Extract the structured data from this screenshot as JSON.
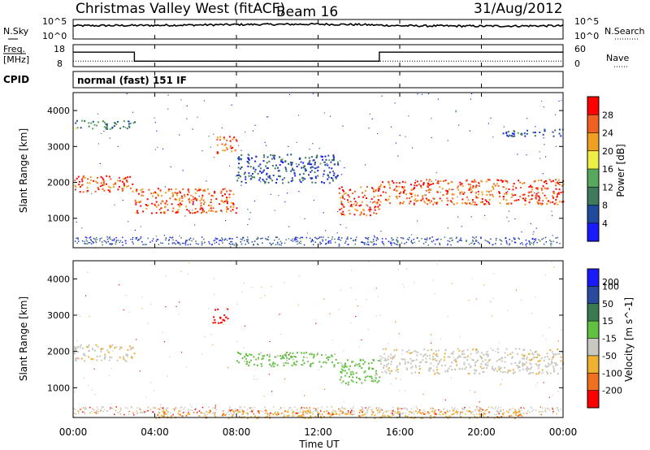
{
  "header": {
    "station": "Christmas Valley West (fitACF)",
    "beam": "Beam 16",
    "date": "31/Aug/2012"
  },
  "noise_panel": {
    "left_label": "N.Sky",
    "right_label": "N.Search",
    "left_ticks": [
      "10^5",
      "10^0"
    ],
    "right_ticks": [
      "10^5",
      "10^0"
    ]
  },
  "freq_panel": {
    "left_label_1": "Freq.",
    "left_label_2": "[MHz]",
    "left_ticks": [
      "18",
      "8"
    ],
    "right_label": "Nave",
    "right_ticks": [
      "60",
      "0"
    ]
  },
  "cpid_panel": {
    "label": "CPID",
    "text": "normal (fast) 151 IF"
  },
  "power_panel": {
    "ylabel": "Slant Range [km]",
    "yticks": [
      "1000",
      "2000",
      "3000",
      "4000"
    ],
    "colorbar_label": "Power [dB]",
    "colorbar_ticks": [
      "4",
      "8",
      "12",
      "16",
      "20",
      "24",
      "28"
    ],
    "colors": [
      "#1a1aff",
      "#204a9e",
      "#3e7a5c",
      "#57a85c",
      "#eeee44",
      "#f0a020",
      "#f06020",
      "#ff0000"
    ]
  },
  "velocity_panel": {
    "ylabel": "Slant Range [km]",
    "yticks": [
      "1000",
      "2000",
      "3000",
      "4000"
    ],
    "colorbar_label": "Velocity [m s^-1]",
    "colorbar_ticks": [
      "200",
      "100",
      "50",
      "15",
      "-15",
      "-50",
      "-100",
      "-200"
    ],
    "colors": [
      "#1a1aff",
      "#2a4a9e",
      "#3a7a50",
      "#60c040",
      "#c8c8c0",
      "#f0b030",
      "#f07020",
      "#ff0000"
    ]
  },
  "x_axis": {
    "label": "Time UT",
    "ticks": [
      "00:00",
      "04:00",
      "08:00",
      "12:00",
      "16:00",
      "20:00",
      "00:00"
    ]
  },
  "chart_data": [
    {
      "type": "line",
      "title": "Noise",
      "series": [
        {
          "name": "N.Sky",
          "x_hours": [
            0,
            4,
            8,
            12,
            14,
            16,
            20,
            24
          ],
          "values_log10": [
            3.4,
            3.5,
            3.7,
            3.8,
            3.7,
            3.4,
            3.3,
            3.4
          ]
        }
      ],
      "ylim_log10": [
        0,
        5
      ]
    },
    {
      "type": "line",
      "title": "Freq",
      "series": [
        {
          "name": "Freq. [MHz]",
          "x_hours": [
            0,
            3.0,
            3.0,
            15.0,
            15.0,
            24
          ],
          "values": [
            14.6,
            14.6,
            10.5,
            10.5,
            14.6,
            14.6
          ]
        },
        {
          "name": "Nave",
          "x_hours": [
            0,
            24
          ],
          "values": [
            15,
            15
          ]
        }
      ],
      "ylim": [
        8,
        18
      ]
    },
    {
      "type": "heatmap",
      "title": "Power [dB]",
      "x_hours_range": [
        0,
        24
      ],
      "y_km_range": [
        180,
        4500
      ],
      "features": [
        {
          "t0": 0.0,
          "t1": 3.0,
          "r0": 1750,
          "r1": 2200,
          "power_db": 22
        },
        {
          "t0": 3.0,
          "t1": 8.0,
          "r0": 1150,
          "r1": 1850,
          "power_db": 22
        },
        {
          "t0": 7.0,
          "t1": 8.0,
          "r0": 2800,
          "r1": 3300,
          "power_db": 20
        },
        {
          "t0": 8.0,
          "t1": 13.0,
          "r0": 2000,
          "r1": 2800,
          "power_db": 6
        },
        {
          "t0": 13.0,
          "t1": 15.0,
          "r0": 1100,
          "r1": 1900,
          "power_db": 22
        },
        {
          "t0": 15.0,
          "t1": 24.0,
          "r0": 1400,
          "r1": 2100,
          "power_db": 23
        },
        {
          "t0": 0.0,
          "t1": 3.0,
          "r0": 3500,
          "r1": 3750,
          "power_db": 10
        },
        {
          "t0": 21.0,
          "t1": 24.0,
          "r0": 3300,
          "r1": 3500,
          "power_db": 8
        }
      ],
      "colorbar_ticks": [
        4,
        8,
        12,
        16,
        20,
        24,
        28
      ]
    },
    {
      "type": "heatmap",
      "title": "Velocity [m s^-1]",
      "x_hours_range": [
        0,
        24
      ],
      "y_km_range": [
        180,
        4500
      ],
      "features": [
        {
          "t0": 0.0,
          "t1": 3.0,
          "r0": 1750,
          "r1": 2200,
          "velocity": 0
        },
        {
          "t0": 6.8,
          "t1": 7.6,
          "r0": 2800,
          "r1": 3200,
          "velocity": -200
        },
        {
          "t0": 8.0,
          "t1": 13.0,
          "r0": 1600,
          "r1": 2000,
          "velocity": 40
        },
        {
          "t0": 13.0,
          "t1": 15.0,
          "r0": 1100,
          "r1": 1800,
          "velocity": 50
        },
        {
          "t0": 15.0,
          "t1": 24.0,
          "r0": 1400,
          "r1": 2100,
          "velocity": 0
        },
        {
          "t0": 4.0,
          "t1": 22.0,
          "r0": 180,
          "r1": 400,
          "velocity": -30
        }
      ],
      "colorbar_ticks": [
        200,
        100,
        50,
        15,
        -15,
        -50,
        -100,
        -200
      ]
    }
  ]
}
